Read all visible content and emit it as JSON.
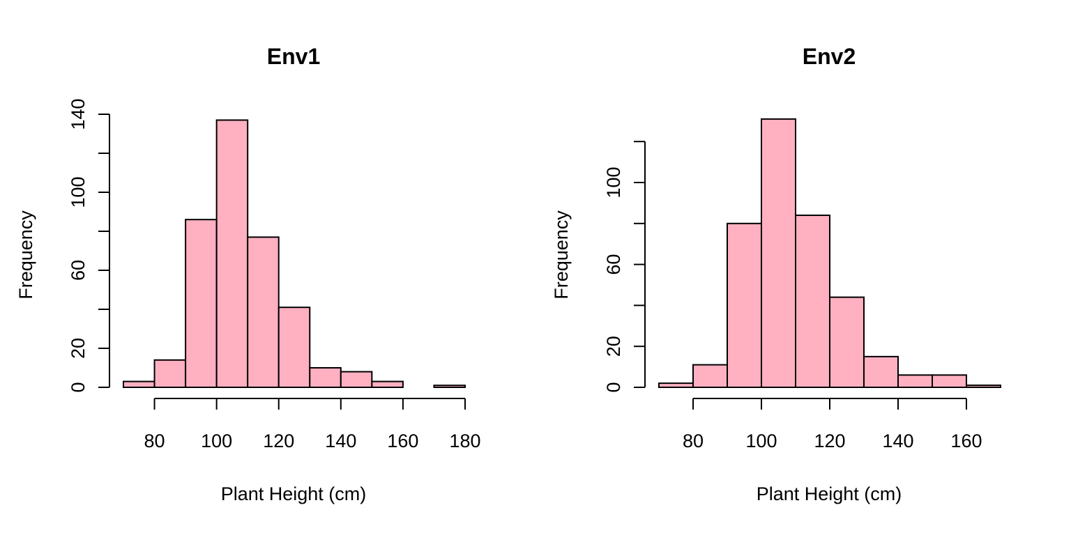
{
  "chart_data": [
    {
      "type": "bar",
      "title": "Env1",
      "xlabel": "Plant Height (cm)",
      "ylabel": "Frequency",
      "bin_edges": [
        70,
        80,
        90,
        100,
        110,
        120,
        130,
        140,
        150,
        160,
        170,
        180
      ],
      "values": [
        3,
        14,
        86,
        137,
        77,
        41,
        10,
        8,
        3,
        0,
        1
      ],
      "xlim": [
        70,
        180
      ],
      "ylim": [
        0,
        140
      ],
      "xticks": [
        80,
        100,
        120,
        140,
        160,
        180
      ],
      "yticks": [
        0,
        20,
        40,
        60,
        80,
        100,
        120,
        140
      ],
      "ytick_labels": [
        "0",
        "20",
        "",
        "60",
        "",
        "100",
        "",
        "140"
      ],
      "bar_color": "#ffb0c1",
      "grid": false
    },
    {
      "type": "bar",
      "title": "Env2",
      "xlabel": "Plant Height (cm)",
      "ylabel": "Frequency",
      "bin_edges": [
        70,
        80,
        90,
        100,
        110,
        120,
        130,
        140,
        150,
        160,
        170
      ],
      "values": [
        2,
        11,
        80,
        131,
        84,
        44,
        15,
        6,
        6,
        1
      ],
      "xlim": [
        70,
        170
      ],
      "ylim": [
        0,
        120
      ],
      "xticks": [
        80,
        100,
        120,
        140,
        160
      ],
      "yticks": [
        0,
        20,
        40,
        60,
        80,
        100,
        120
      ],
      "ytick_labels": [
        "0",
        "20",
        "",
        "60",
        "",
        "100",
        ""
      ],
      "bar_color": "#ffb0c1",
      "grid": false
    }
  ]
}
